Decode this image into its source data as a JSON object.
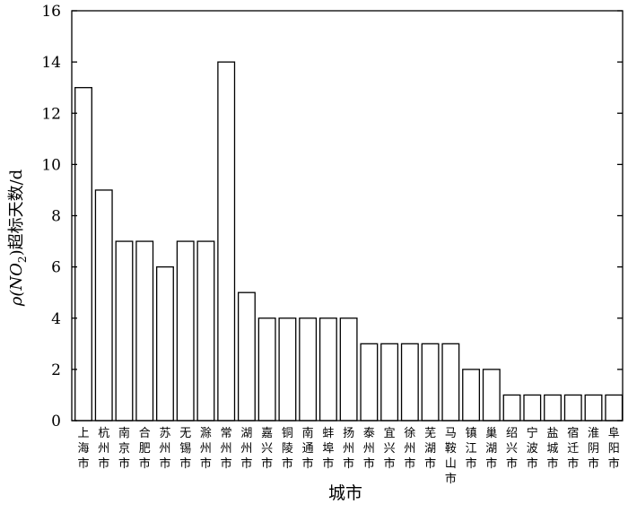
{
  "chart_data": {
    "type": "bar",
    "title": "",
    "xlabel": "城市",
    "ylabel_prefix": "ρ(NO",
    "ylabel_sub": "2",
    "ylabel_suffix": ")超标天数/d",
    "ylim": [
      0,
      16
    ],
    "yticks": [
      0,
      2,
      4,
      6,
      8,
      10,
      12,
      14,
      16
    ],
    "grid": false,
    "categories": [
      "上海市",
      "杭州市",
      "南京市",
      "合肥市",
      "苏州市",
      "无锡市",
      "滁州市",
      "常州市",
      "湖州市",
      "嘉兴市",
      "铜陵市",
      "南通市",
      "蚌埠市",
      "扬州市",
      "泰州市",
      "宜兴市",
      "徐州市",
      "芜湖市",
      "马鞍山市",
      "镇江市",
      "巢湖市",
      "绍兴市",
      "宁波市",
      "盐城市",
      "宿迁市",
      "淮阴市",
      "阜阳市"
    ],
    "values": [
      13,
      9,
      7,
      7,
      6,
      7,
      7,
      14,
      5,
      4,
      4,
      4,
      4,
      4,
      3,
      3,
      3,
      3,
      3,
      2,
      2,
      1,
      1,
      1,
      1,
      1,
      1
    ],
    "bar_fill": "#ffffff",
    "bar_stroke": "#000000"
  }
}
